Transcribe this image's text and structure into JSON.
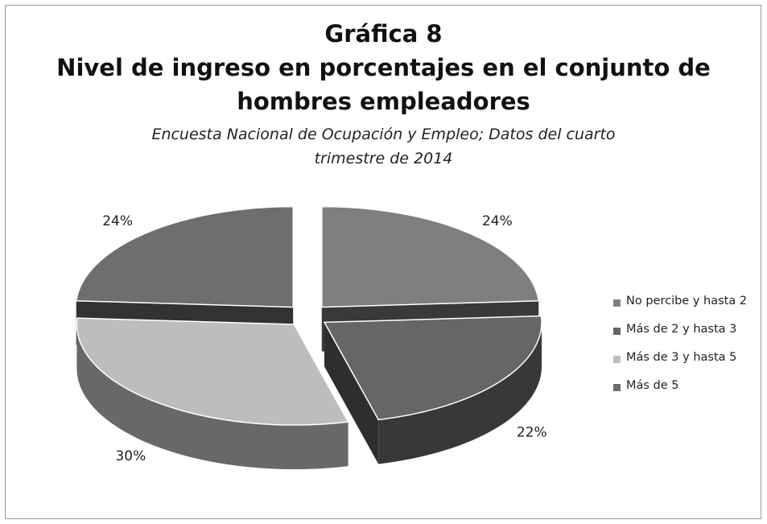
{
  "chart_data": {
    "type": "pie",
    "title_lines": [
      "Gráfica 8",
      "Nivel de ingreso en porcentajes en el conjunto de",
      "hombres empleadores"
    ],
    "subtitle_lines": [
      "Encuesta Nacional de Ocupación y Empleo; Datos del cuarto",
      "trimestre de 2014"
    ],
    "categories": [
      "No percibe y hasta 2",
      "Más de 2 y hasta 3",
      "Más de 3 y hasta 5",
      "Más de 5"
    ],
    "values": [
      24,
      22,
      30,
      24
    ],
    "data_labels": [
      "24%",
      "22%",
      "30%",
      "24%"
    ],
    "exploded": true,
    "style": "3d",
    "legend_position": "right",
    "colors": [
      "#7f7f7f",
      "#666666",
      "#bdbdbd",
      "#6e6e6e"
    ]
  }
}
